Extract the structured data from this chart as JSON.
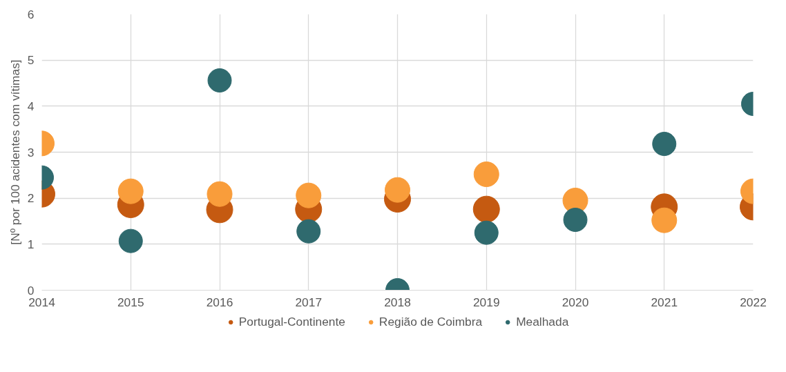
{
  "chart_data": {
    "type": "scatter",
    "ylabel": "[Nº por 100 acidentes com vítimas]",
    "x": [
      2014,
      2015,
      2016,
      2017,
      2018,
      2019,
      2020,
      2021,
      2022
    ],
    "xlim": [
      2014,
      2022
    ],
    "xticks": [
      2014,
      2015,
      2016,
      2017,
      2018,
      2019,
      2020,
      2021,
      2022
    ],
    "ylim": [
      0,
      6
    ],
    "yticks": [
      0,
      1,
      2,
      3,
      4,
      5,
      6
    ],
    "grid": true,
    "legend": "bottom",
    "marker": "circle",
    "series": [
      {
        "name": "Portugal-Continente",
        "color": "#c55a11",
        "values": [
          2.09,
          1.86,
          1.75,
          1.76,
          1.98,
          1.76,
          null,
          1.81,
          1.81
        ]
      },
      {
        "name": "Região de Coimbra",
        "color": "#f99d3b",
        "values": [
          3.19,
          2.15,
          2.09,
          2.06,
          2.18,
          2.52,
          1.95,
          1.52,
          2.15
        ]
      },
      {
        "name": "Mealhada",
        "color": "#2f6a6e",
        "values": [
          2.45,
          1.07,
          4.56,
          1.28,
          0,
          1.25,
          1.53,
          3.18,
          4.05
        ]
      }
    ]
  }
}
